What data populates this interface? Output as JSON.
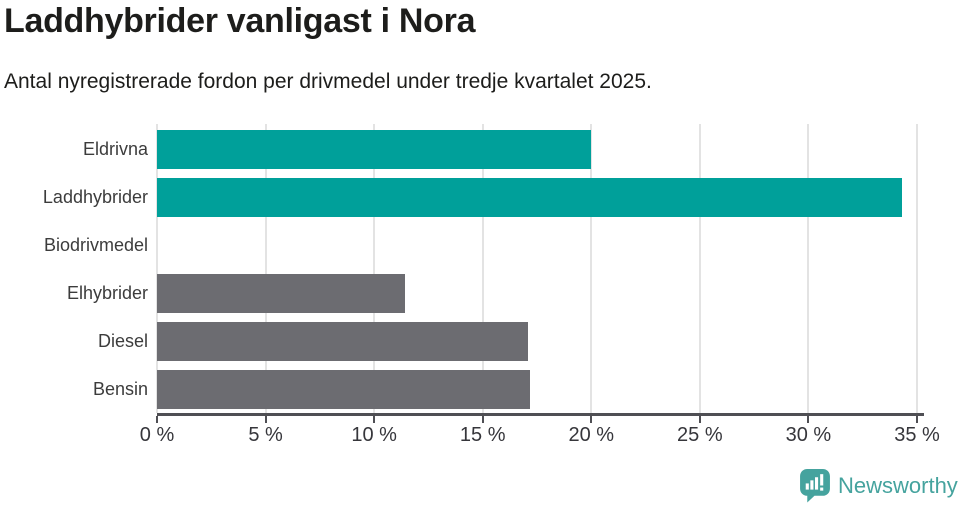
{
  "header": {
    "title": "Laddhybrider vanligast i Nora",
    "subtitle": "Antal nyregistrerade fordon per drivmedel under tredje kvartalet 2025."
  },
  "chart_data": {
    "type": "bar",
    "orientation": "horizontal",
    "title": "Laddhybrider vanligast i Nora",
    "subtitle": "Antal nyregistrerade fordon per drivmedel under tredje kvartalet 2025.",
    "categories": [
      "Eldrivna",
      "Laddhybrider",
      "Biodrivmedel",
      "Elhybrider",
      "Diesel",
      "Bensin"
    ],
    "values": [
      20.0,
      34.3,
      0,
      11.4,
      17.1,
      17.2
    ],
    "unit": "%",
    "bar_colors": [
      "#00a09a",
      "#00a09a",
      "#00a09a",
      "#6c6c71",
      "#6c6c71",
      "#6c6c71"
    ],
    "xlabel": "",
    "ylabel": "",
    "xlim": [
      0,
      35
    ],
    "x_tick_values": [
      0,
      5,
      10,
      15,
      20,
      25,
      30,
      35
    ],
    "x_tick_labels": [
      "0 %",
      "5 %",
      "10 %",
      "15 %",
      "20 %",
      "25 %",
      "30 %",
      "35 %"
    ],
    "grid": "vertical",
    "legend": false
  },
  "colors": {
    "bar_highlight": "#00a09a",
    "bar_default": "#6c6c71",
    "gridline": "#e3e3e3",
    "axis_line": "#4f4f54",
    "text": "#1d1d1b",
    "label_text": "#3c3c3c",
    "tick_text": "#36363b",
    "brand": "#45a39e"
  },
  "footer": {
    "brand_name": "Newsworthy"
  }
}
